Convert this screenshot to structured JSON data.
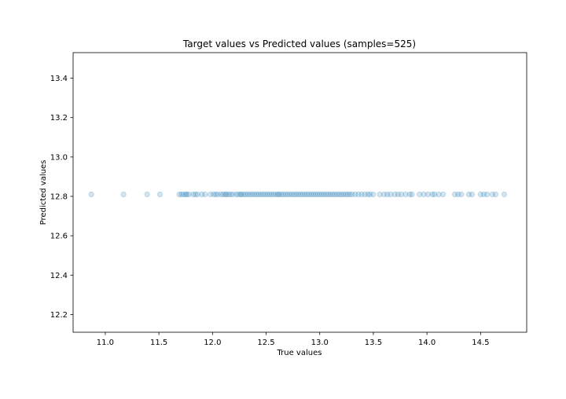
{
  "chart_data": {
    "type": "scatter",
    "title": "Target values vs Predicted values (samples=525)",
    "xlabel": "True values",
    "ylabel": "Predicted values",
    "xlim": [
      10.7,
      14.93
    ],
    "ylim": [
      12.11,
      13.53
    ],
    "xticks": [
      11.0,
      11.5,
      12.0,
      12.5,
      13.0,
      13.5,
      14.0,
      14.5
    ],
    "xtick_labels": [
      "11.0",
      "11.5",
      "12.0",
      "12.5",
      "13.0",
      "13.5",
      "14.0",
      "14.5"
    ],
    "yticks": [
      12.2,
      12.4,
      12.6,
      12.8,
      13.0,
      13.2,
      13.4
    ],
    "ytick_labels": [
      "12.2",
      "12.4",
      "12.6",
      "12.8",
      "13.0",
      "13.2",
      "13.4"
    ],
    "grid": false,
    "point_color": "#1f77b4",
    "point_alpha": 0.2,
    "series": [
      {
        "predicted_value": 12.81,
        "x": [
          10.87,
          11.17,
          11.39,
          11.51,
          11.69,
          11.71,
          11.73,
          11.75,
          11.76,
          11.78,
          11.82,
          11.84,
          11.86,
          11.9,
          11.93,
          11.98,
          12.01,
          12.03,
          12.05,
          12.08,
          12.1,
          12.12,
          12.13,
          12.15,
          12.17,
          12.19,
          12.22,
          12.24,
          12.26,
          12.27,
          12.29,
          12.31,
          12.33,
          12.35,
          12.37,
          12.39,
          12.41,
          12.43,
          12.45,
          12.47,
          12.49,
          12.51,
          12.53,
          12.55,
          12.57,
          12.59,
          12.61,
          12.62,
          12.64,
          12.66,
          12.68,
          12.7,
          12.72,
          12.74,
          12.76,
          12.78,
          12.8,
          12.82,
          12.84,
          12.86,
          12.88,
          12.9,
          12.92,
          12.94,
          12.96,
          12.98,
          13.0,
          13.02,
          13.04,
          13.06,
          13.08,
          13.1,
          13.12,
          13.14,
          13.16,
          13.18,
          13.2,
          13.22,
          13.24,
          13.26,
          13.28,
          13.3,
          13.33,
          13.36,
          13.39,
          13.42,
          13.45,
          13.47,
          13.5,
          13.56,
          13.6,
          13.63,
          13.66,
          13.7,
          13.73,
          13.76,
          13.8,
          13.84,
          13.86,
          13.93,
          13.97,
          14.01,
          14.05,
          14.07,
          14.11,
          14.15,
          14.26,
          14.29,
          14.32,
          14.39,
          14.42,
          14.5,
          14.53,
          14.56,
          14.61,
          14.64,
          14.72
        ]
      }
    ]
  }
}
